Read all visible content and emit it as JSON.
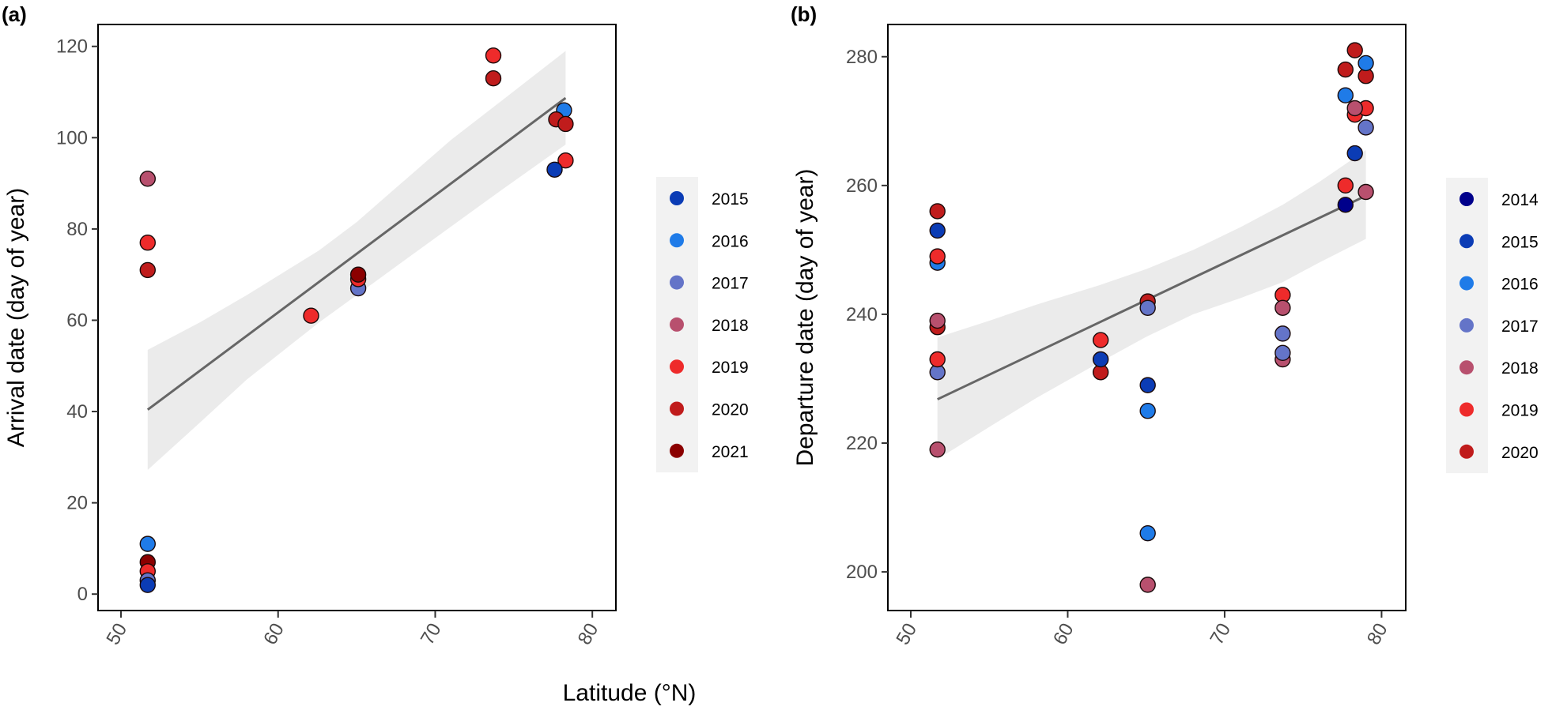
{
  "figure": {
    "shared_xlabel": "Latitude (°N)"
  },
  "chart_data": [
    {
      "type": "scatter",
      "panel_tag": "(a)",
      "title": "",
      "xlabel": "Latitude (°N)",
      "ylabel": "Arrival date (day of year)",
      "xlim": [
        48.54,
        81.5
      ],
      "ylim": [
        -3.6,
        124.8
      ],
      "xticks": [
        50,
        60,
        70,
        80
      ],
      "yticks": [
        0,
        20,
        40,
        60,
        80,
        100,
        120
      ],
      "grid": false,
      "legend_position": "right",
      "legend": [
        {
          "label": "2015",
          "color": "#0b3cb5"
        },
        {
          "label": "2016",
          "color": "#1f7be8"
        },
        {
          "label": "2017",
          "color": "#6474c8"
        },
        {
          "label": "2018",
          "color": "#b8506e"
        },
        {
          "label": "2019",
          "color": "#ee2b2b"
        },
        {
          "label": "2020",
          "color": "#c01c1c"
        },
        {
          "label": "2021",
          "color": "#8b0000"
        }
      ],
      "points": [
        {
          "x": 51.7,
          "y": 91,
          "year": "2018"
        },
        {
          "x": 51.7,
          "y": 77,
          "year": "2019"
        },
        {
          "x": 51.7,
          "y": 71,
          "year": "2020"
        },
        {
          "x": 51.7,
          "y": 11,
          "year": "2016"
        },
        {
          "x": 51.7,
          "y": 7,
          "year": "2021"
        },
        {
          "x": 51.7,
          "y": 5,
          "year": "2019"
        },
        {
          "x": 51.7,
          "y": 3,
          "year": "2017"
        },
        {
          "x": 51.7,
          "y": 2,
          "year": "2015"
        },
        {
          "x": 62.1,
          "y": 61,
          "year": "2019"
        },
        {
          "x": 65.1,
          "y": 67,
          "year": "2017"
        },
        {
          "x": 65.1,
          "y": 69,
          "year": "2019"
        },
        {
          "x": 65.1,
          "y": 70,
          "year": "2021"
        },
        {
          "x": 73.7,
          "y": 118,
          "year": "2019"
        },
        {
          "x": 73.7,
          "y": 113,
          "year": "2020"
        },
        {
          "x": 78.2,
          "y": 106,
          "year": "2016"
        },
        {
          "x": 77.7,
          "y": 104,
          "year": "2020"
        },
        {
          "x": 78.3,
          "y": 103,
          "year": "2020"
        },
        {
          "x": 78.3,
          "y": 95,
          "year": "2019"
        },
        {
          "x": 77.6,
          "y": 93,
          "year": "2015"
        }
      ],
      "regression": {
        "x": [
          51.7,
          78.3
        ],
        "y": [
          40.4,
          108.7
        ]
      },
      "confidence_band": {
        "x": [
          51.7,
          55,
          58,
          62.6,
          65,
          68,
          71,
          74,
          78.3
        ],
        "upper": [
          53.5,
          59.5,
          65.5,
          75.3,
          81.5,
          90.5,
          99.5,
          107.5,
          119
        ],
        "lower": [
          27.2,
          37.5,
          47,
          59.5,
          65.5,
          73,
          80.5,
          88,
          98.5
        ]
      }
    },
    {
      "type": "scatter",
      "panel_tag": "(b)",
      "title": "",
      "xlabel": "Latitude (°N)",
      "ylabel": "Departure date (day of year)",
      "xlim": [
        48.54,
        81.54
      ],
      "ylim": [
        194,
        285
      ],
      "xticks": [
        50,
        60,
        70,
        80
      ],
      "yticks": [
        200,
        220,
        240,
        260,
        280
      ],
      "grid": false,
      "legend_position": "right",
      "legend": [
        {
          "label": "2014",
          "color": "#00008b"
        },
        {
          "label": "2015",
          "color": "#0b3cb5"
        },
        {
          "label": "2016",
          "color": "#1f7be8"
        },
        {
          "label": "2017",
          "color": "#6474c8"
        },
        {
          "label": "2018",
          "color": "#b8506e"
        },
        {
          "label": "2019",
          "color": "#ee2b2b"
        },
        {
          "label": "2020",
          "color": "#c01c1c"
        }
      ],
      "points": [
        {
          "x": 51.7,
          "y": 256,
          "year": "2020"
        },
        {
          "x": 51.7,
          "y": 253,
          "year": "2015"
        },
        {
          "x": 51.7,
          "y": 248,
          "year": "2016"
        },
        {
          "x": 51.7,
          "y": 249,
          "year": "2019"
        },
        {
          "x": 51.7,
          "y": 238,
          "year": "2020"
        },
        {
          "x": 51.7,
          "y": 239,
          "year": "2018"
        },
        {
          "x": 51.7,
          "y": 231,
          "year": "2017"
        },
        {
          "x": 51.7,
          "y": 233,
          "year": "2019"
        },
        {
          "x": 51.7,
          "y": 219,
          "year": "2018"
        },
        {
          "x": 62.1,
          "y": 236,
          "year": "2019"
        },
        {
          "x": 62.1,
          "y": 231,
          "year": "2020"
        },
        {
          "x": 62.1,
          "y": 233,
          "year": "2015"
        },
        {
          "x": 65.1,
          "y": 242,
          "year": "2020"
        },
        {
          "x": 65.1,
          "y": 241,
          "year": "2017"
        },
        {
          "x": 65.1,
          "y": 229,
          "year": "2015"
        },
        {
          "x": 65.1,
          "y": 225,
          "year": "2016"
        },
        {
          "x": 65.1,
          "y": 206,
          "year": "2016"
        },
        {
          "x": 65.1,
          "y": 198,
          "year": "2018"
        },
        {
          "x": 73.7,
          "y": 243,
          "year": "2019"
        },
        {
          "x": 73.7,
          "y": 241,
          "year": "2018"
        },
        {
          "x": 73.7,
          "y": 237,
          "year": "2017"
        },
        {
          "x": 73.7,
          "y": 233,
          "year": "2018"
        },
        {
          "x": 73.7,
          "y": 234,
          "year": "2017"
        },
        {
          "x": 78.3,
          "y": 281,
          "year": "2020"
        },
        {
          "x": 77.7,
          "y": 278,
          "year": "2020"
        },
        {
          "x": 79.0,
          "y": 277,
          "year": "2020"
        },
        {
          "x": 79.0,
          "y": 279,
          "year": "2016"
        },
        {
          "x": 77.7,
          "y": 274,
          "year": "2016"
        },
        {
          "x": 78.3,
          "y": 271,
          "year": "2019"
        },
        {
          "x": 79.0,
          "y": 272,
          "year": "2019"
        },
        {
          "x": 78.3,
          "y": 272,
          "year": "2018"
        },
        {
          "x": 79.0,
          "y": 269,
          "year": "2017"
        },
        {
          "x": 78.3,
          "y": 265,
          "year": "2015"
        },
        {
          "x": 77.7,
          "y": 260,
          "year": "2019"
        },
        {
          "x": 79.0,
          "y": 259,
          "year": "2018"
        },
        {
          "x": 77.7,
          "y": 257,
          "year": "2014"
        }
      ],
      "regression": {
        "x": [
          51.7,
          79.0
        ],
        "y": [
          226.8,
          258.4
        ]
      },
      "confidence_band": {
        "x": [
          51.7,
          55,
          58,
          62,
          65,
          68,
          71,
          73.7,
          76,
          79.0
        ],
        "upper": [
          236.4,
          239,
          241.5,
          244.5,
          247,
          250,
          253.5,
          257,
          260.5,
          265.5
        ],
        "lower": [
          217.5,
          222.5,
          227,
          232.5,
          236.5,
          240,
          242.5,
          245,
          248,
          251.7
        ]
      }
    }
  ]
}
